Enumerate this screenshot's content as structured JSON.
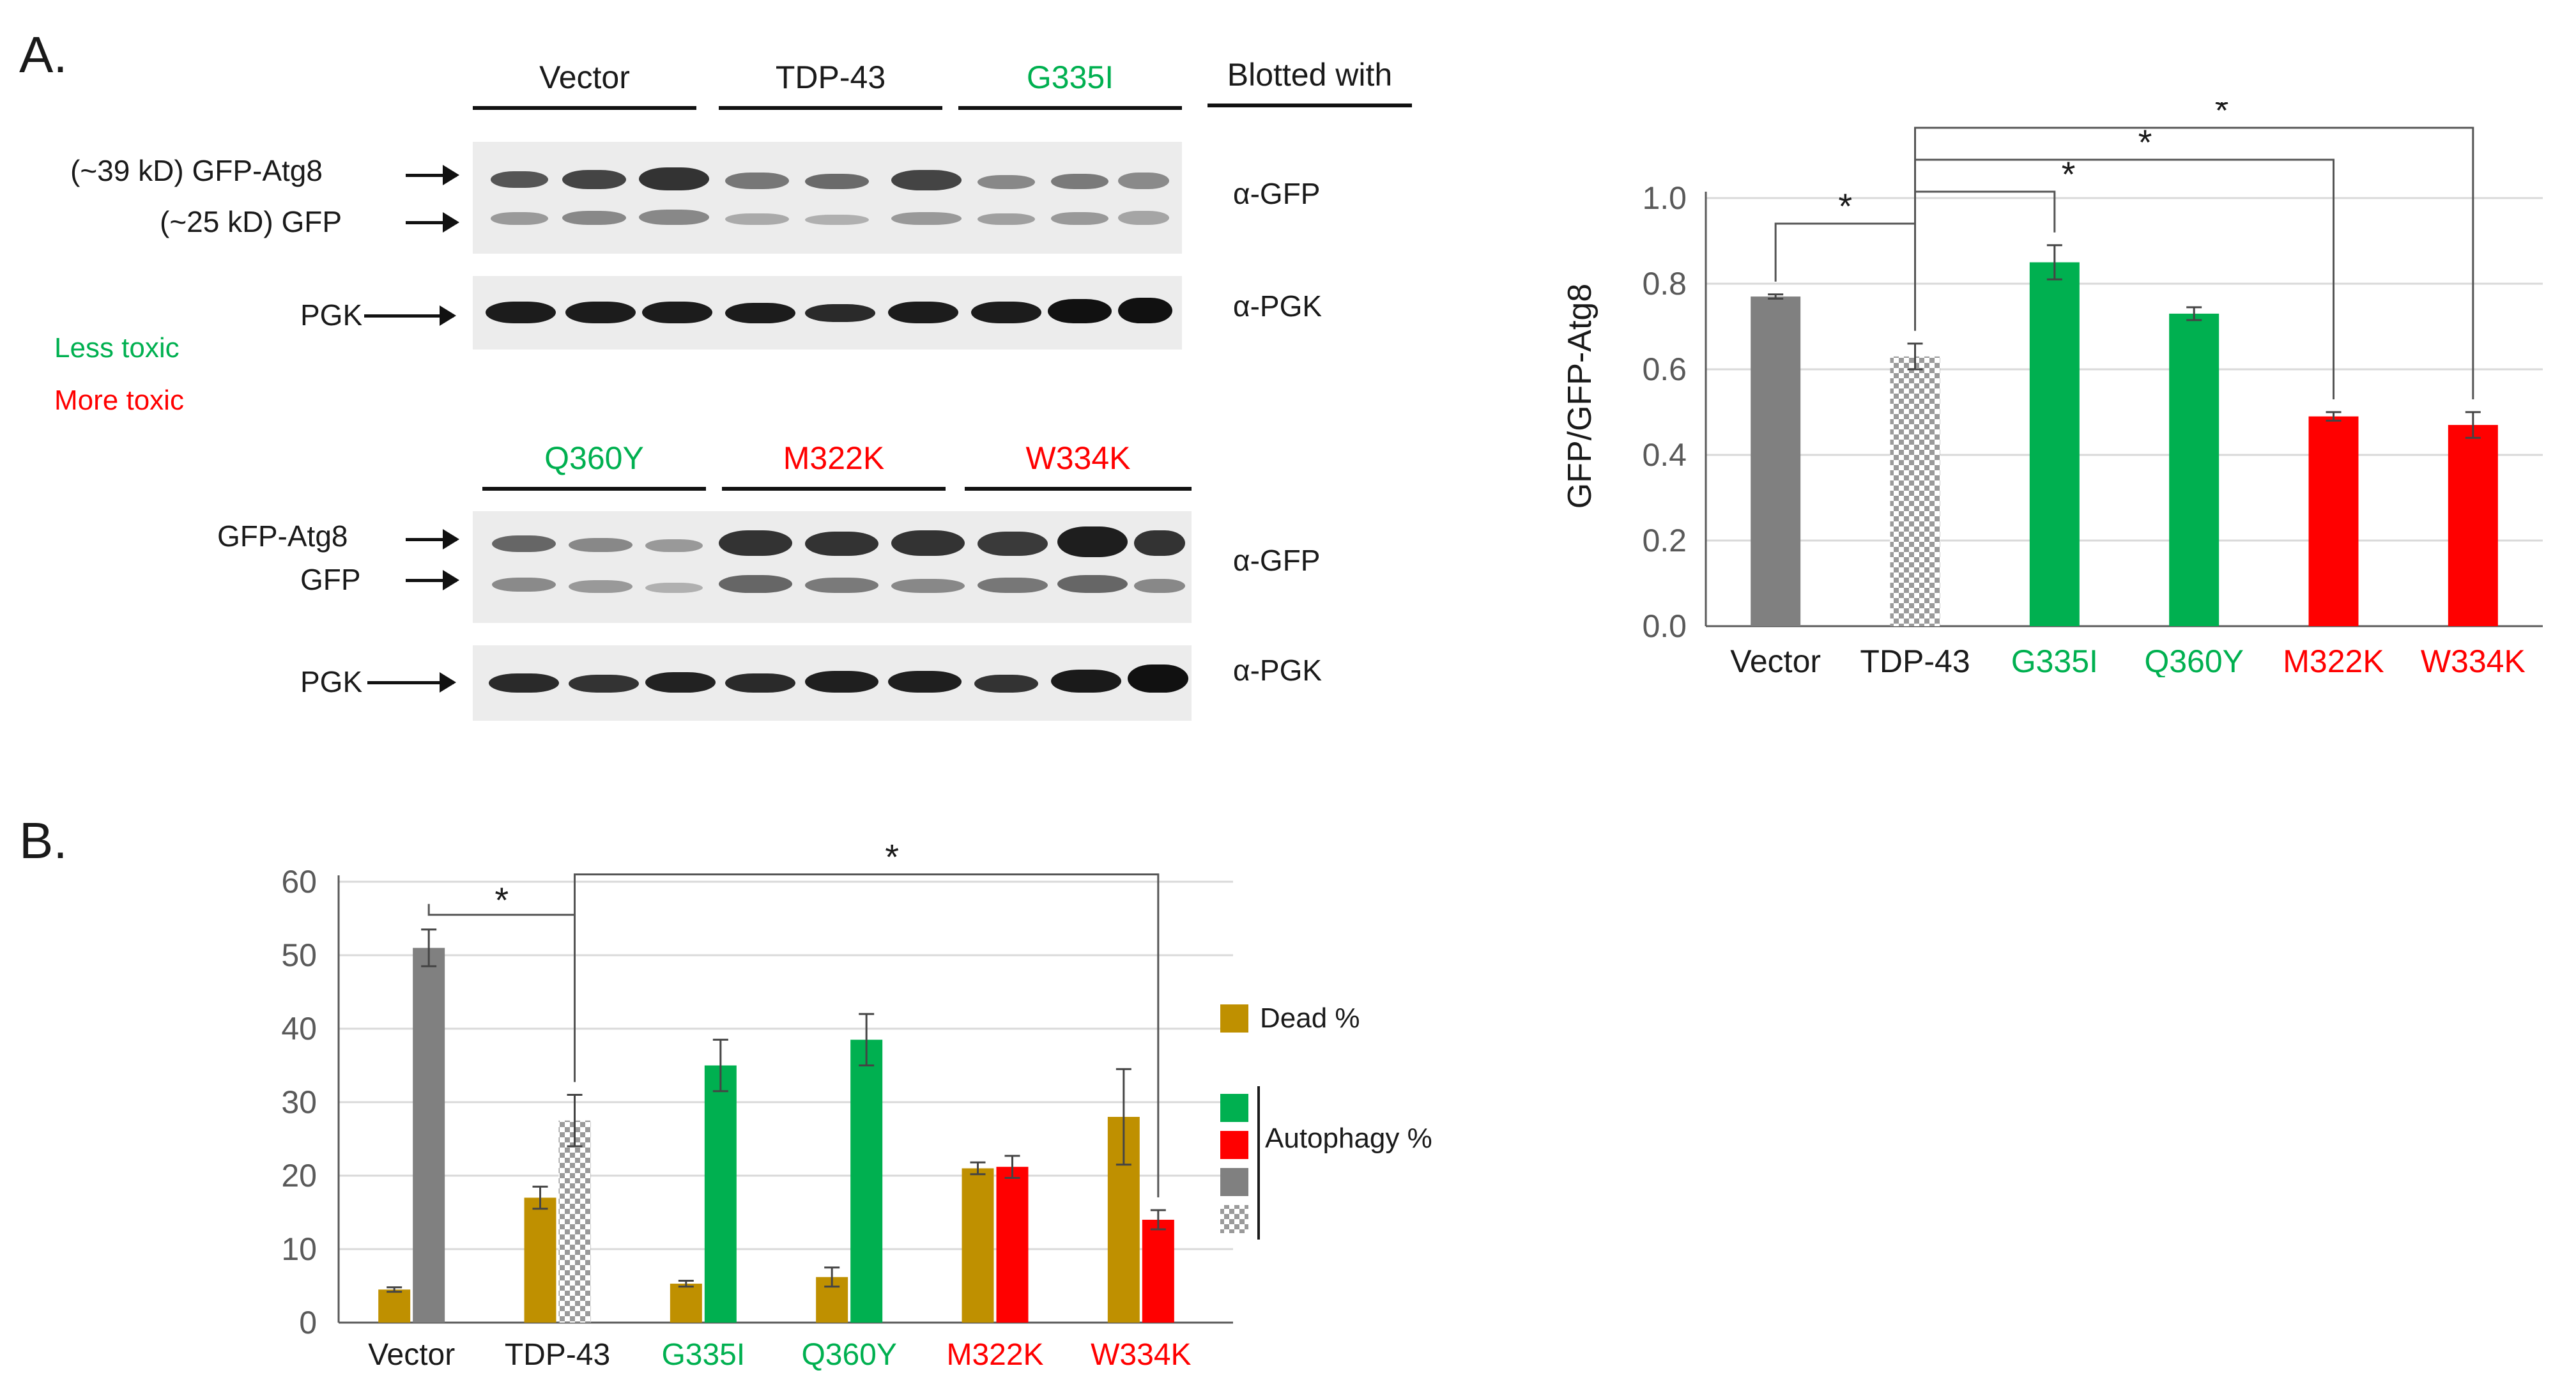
{
  "colors": {
    "gray": "#808080",
    "green": "#00b050",
    "red": "#ff0000",
    "gold": "#bf9000",
    "grid": "#d9d9d9",
    "axis": "#595959"
  },
  "panelA": {
    "letter": "A.",
    "blot_top": {
      "groups": [
        {
          "label": "Vector",
          "color": "#1a1a1a"
        },
        {
          "label": "TDP-43",
          "color": "#1a1a1a"
        },
        {
          "label": "G335I",
          "color": "#00b050"
        }
      ],
      "blotted_with": "Blotted with",
      "label_gfp_atg8": "(~39 kD) GFP-Atg8",
      "label_gfp": "(~25 kD) GFP",
      "label_pgk": "PGK",
      "antibody_gfp": "α-GFP",
      "antibody_pgk": "α-PGK"
    },
    "toxicity_legend": {
      "less": "Less toxic",
      "more": "More toxic"
    },
    "blot_bottom": {
      "groups": [
        {
          "label": "Q360Y",
          "color": "#00b050"
        },
        {
          "label": "M322K",
          "color": "#ff0000"
        },
        {
          "label": "W334K",
          "color": "#ff0000"
        }
      ],
      "label_gfp_atg8": "GFP-Atg8",
      "label_gfp": "GFP",
      "label_pgk": "PGK",
      "antibody_gfp": "α-GFP",
      "antibody_pgk": "α-PGK"
    }
  },
  "panelB": {
    "letter": "B."
  },
  "chart_data": [
    {
      "type": "bar",
      "ylabel": "GFP/GFP-Atg8",
      "ylim": [
        0,
        1.0
      ],
      "yticks": [
        "0.0",
        "0.2",
        "0.4",
        "0.6",
        "0.8",
        "1.0"
      ],
      "categories": [
        "Vector",
        "TDP-43",
        "G335I",
        "Q360Y",
        "M322K",
        "W334K"
      ],
      "category_colors": [
        "#1a1a1a",
        "#1a1a1a",
        "#00b050",
        "#00b050",
        "#ff0000",
        "#ff0000"
      ],
      "values": [
        0.77,
        0.63,
        0.85,
        0.73,
        0.49,
        0.47
      ],
      "errors": [
        0.005,
        0.03,
        0.04,
        0.015,
        0.01,
        0.03
      ],
      "bar_fills": [
        "gray",
        "checker",
        "green",
        "green",
        "red",
        "red"
      ],
      "grid": true,
      "significance": [
        {
          "from": 0,
          "to": 1,
          "label": "*"
        },
        {
          "from": 1,
          "to": 2,
          "label": "*"
        },
        {
          "from": 1,
          "to": 4,
          "label": "*"
        },
        {
          "from": 1,
          "to": 5,
          "label": "*"
        }
      ]
    },
    {
      "type": "bar",
      "ylim": [
        0,
        60
      ],
      "yticks": [
        "0",
        "10",
        "20",
        "30",
        "40",
        "50",
        "60"
      ],
      "categories": [
        "Vector",
        "TDP-43",
        "G335I",
        "Q360Y",
        "M322K",
        "W334K"
      ],
      "category_colors": [
        "#1a1a1a",
        "#1a1a1a",
        "#00b050",
        "#00b050",
        "#ff0000",
        "#ff0000"
      ],
      "series": [
        {
          "name": "Dead %",
          "values": [
            4.5,
            17,
            5.3,
            6.2,
            21,
            28
          ],
          "errors": [
            0.3,
            1.5,
            0.4,
            1.3,
            0.8,
            6.5
          ]
        },
        {
          "name": "Autophagy %",
          "values": [
            51,
            27.5,
            35,
            38.5,
            21.2,
            14
          ],
          "errors": [
            2.5,
            3.5,
            3.5,
            3.5,
            1.5,
            1.3
          ],
          "fills": [
            "gray",
            "checker",
            "green",
            "green",
            "red",
            "red"
          ]
        }
      ],
      "grid": true,
      "legend_position": "right",
      "significance": [
        {
          "from": 0,
          "to": 1,
          "label": "*"
        },
        {
          "from": 1,
          "to": 5,
          "label": "*"
        }
      ]
    }
  ]
}
